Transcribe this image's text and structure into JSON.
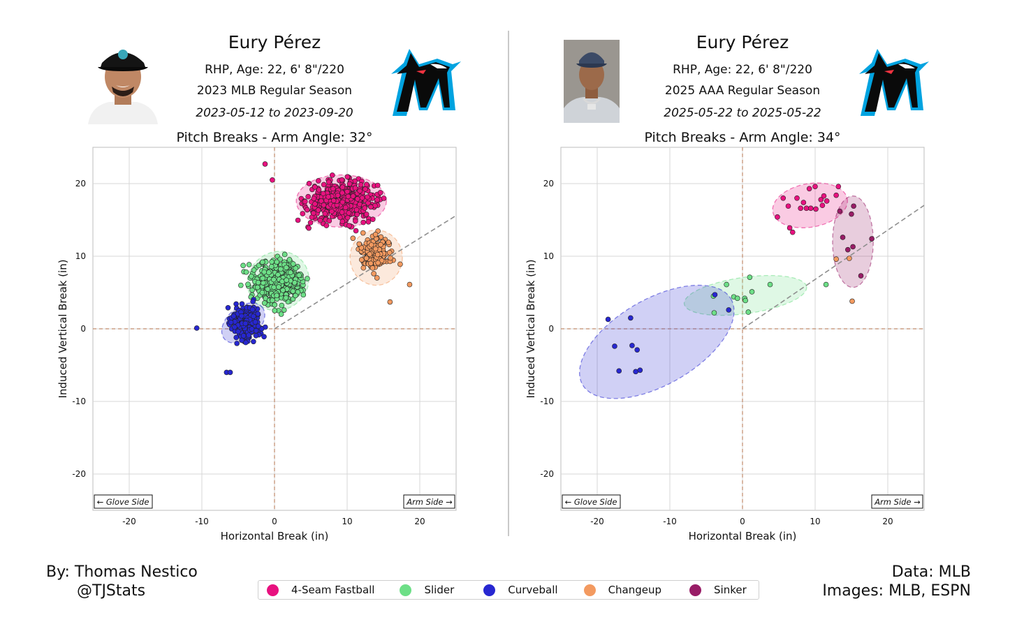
{
  "pitch_types": [
    {
      "key": "FF",
      "name": "4-Seam Fastball",
      "color": "#e8117f"
    },
    {
      "key": "SL",
      "name": "Slider",
      "color": "#6ddf87"
    },
    {
      "key": "CU",
      "name": "Curveball",
      "color": "#2727d1"
    },
    {
      "key": "CH",
      "name": "Changeup",
      "color": "#f39a60"
    },
    {
      "key": "SI",
      "name": "Sinker",
      "color": "#981c66"
    }
  ],
  "panels": [
    {
      "player_name": "Eury Pérez",
      "bio": "RHP, Age: 22, 6' 8\"/220",
      "season": "2023 MLB Regular Season",
      "date_range": "2023-05-12 to 2023-09-20",
      "plot_title": "Pitch Breaks - Arm Angle: 32°",
      "logo": "marlins-m-logo",
      "photo": "player-headshot-cap"
    },
    {
      "player_name": "Eury Pérez",
      "bio": "RHP, Age: 22, 6' 8\"/220",
      "season": "2025 AAA Regular Season",
      "date_range": "2025-05-22 to 2025-05-22",
      "plot_title": "Pitch Breaks - Arm Angle: 34°",
      "logo": "marlins-m-logo",
      "photo": "player-headshot-chain"
    }
  ],
  "footer": {
    "author": "By: Thomas Nestico",
    "handle": "@TJStats",
    "data_source": "Data: MLB",
    "image_source": "Images: MLB, ESPN"
  },
  "chart_data": [
    {
      "type": "scatter",
      "title": "Pitch Breaks - Arm Angle: 32°",
      "xlabel": "Horizontal Break (in)",
      "ylabel": "Induced Vertical Break (in)",
      "xlim": [
        -25,
        25
      ],
      "ylim": [
        -25,
        25
      ],
      "xticks": [
        -20,
        -10,
        0,
        10,
        20
      ],
      "yticks": [
        -20,
        -10,
        0,
        10,
        20
      ],
      "grid": true,
      "annotations": {
        "glove_side": "← Glove Side",
        "arm_side": "Arm Side →"
      },
      "arm_angle_line": {
        "from": [
          0,
          0
        ],
        "to": [
          25,
          15.6
        ]
      },
      "series": [
        {
          "name": "4-Seam Fastball",
          "key": "FF",
          "center": [
            9.2,
            17.6
          ],
          "spread": [
            3.7,
            2.1
          ],
          "count": 520,
          "ellipse": {
            "center": [
              9.2,
              17.6
            ],
            "rx": 6.2,
            "ry": 3.6,
            "angle": 0
          }
        },
        {
          "name": "Slider",
          "key": "SL",
          "center": [
            0.5,
            6.6
          ],
          "spread": [
            2.6,
            2.2
          ],
          "count": 500,
          "ellipse": {
            "center": [
              0.5,
              6.6
            ],
            "rx": 4.3,
            "ry": 4.0,
            "angle": 30
          }
        },
        {
          "name": "Curveball",
          "key": "CU",
          "center": [
            -4.0,
            0.8
          ],
          "spread": [
            1.7,
            2.0
          ],
          "count": 210,
          "ellipse": {
            "center": [
              -4.3,
              0.8
            ],
            "rx": 3.4,
            "ry": 2.2,
            "angle": 40
          }
        },
        {
          "name": "Changeup",
          "key": "CH",
          "center": [
            13.8,
            10.6
          ],
          "spread": [
            1.8,
            1.8
          ],
          "count": 150,
          "ellipse": {
            "center": [
              14.0,
              9.8
            ],
            "rx": 3.6,
            "ry": 3.8,
            "angle": 0
          }
        },
        {
          "name": "Sinker",
          "key": "SI",
          "count": 0
        }
      ],
      "outliers": [
        {
          "key": "FF",
          "x": -1.3,
          "y": 22.7
        },
        {
          "key": "FF",
          "x": -0.3,
          "y": 20.5
        },
        {
          "key": "FF",
          "x": 4.5,
          "y": 16.4
        },
        {
          "key": "CU",
          "x": -10.7,
          "y": 0.1
        },
        {
          "key": "CU",
          "x": -6.6,
          "y": -6.0
        },
        {
          "key": "CU",
          "x": -6.1,
          "y": -6.0
        },
        {
          "key": "CH",
          "x": 15.9,
          "y": 3.7
        },
        {
          "key": "CH",
          "x": 18.6,
          "y": 6.1
        },
        {
          "key": "CH",
          "x": 17.3,
          "y": 8.9
        }
      ]
    },
    {
      "type": "scatter",
      "title": "Pitch Breaks - Arm Angle: 34°",
      "xlabel": "Horizontal Break (in)",
      "ylabel": "Induced Vertical Break (in)",
      "xlim": [
        -25,
        25
      ],
      "ylim": [
        -25,
        25
      ],
      "xticks": [
        -20,
        -10,
        0,
        10,
        20
      ],
      "yticks": [
        -20,
        -10,
        0,
        10,
        20
      ],
      "grid": true,
      "annotations": {
        "glove_side": "← Glove Side",
        "arm_side": "Arm Side →"
      },
      "arm_angle_line": {
        "from": [
          0,
          0
        ],
        "to": [
          25,
          17.0
        ]
      },
      "ellipses": [
        {
          "key": "FF",
          "center": [
            9.3,
            17.0
          ],
          "rx": 5.2,
          "ry": 3.0,
          "angle": 10
        },
        {
          "key": "SL",
          "center": [
            0.4,
            4.6
          ],
          "rx": 8.5,
          "ry": 2.5,
          "angle": 8
        },
        {
          "key": "CU",
          "center": [
            -11.8,
            -1.8
          ],
          "rx": 11.8,
          "ry": 5.9,
          "angle": 30
        },
        {
          "key": "SI",
          "center": [
            15.2,
            12.0
          ],
          "rx": 2.8,
          "ry": 6.3,
          "angle": 0
        }
      ],
      "points": [
        {
          "key": "FF",
          "x": 4.8,
          "y": 15.4
        },
        {
          "key": "FF",
          "x": 5.6,
          "y": 18.0
        },
        {
          "key": "FF",
          "x": 6.3,
          "y": 16.9
        },
        {
          "key": "FF",
          "x": 6.5,
          "y": 13.9
        },
        {
          "key": "FF",
          "x": 6.9,
          "y": 13.3
        },
        {
          "key": "FF",
          "x": 7.5,
          "y": 18.0
        },
        {
          "key": "FF",
          "x": 8.0,
          "y": 16.6
        },
        {
          "key": "FF",
          "x": 8.4,
          "y": 17.4
        },
        {
          "key": "FF",
          "x": 8.8,
          "y": 16.6
        },
        {
          "key": "FF",
          "x": 9.2,
          "y": 19.3
        },
        {
          "key": "FF",
          "x": 9.4,
          "y": 16.6
        },
        {
          "key": "FF",
          "x": 10.1,
          "y": 16.5
        },
        {
          "key": "FF",
          "x": 10.0,
          "y": 19.6
        },
        {
          "key": "FF",
          "x": 10.8,
          "y": 17.8
        },
        {
          "key": "FF",
          "x": 11.2,
          "y": 18.3
        },
        {
          "key": "FF",
          "x": 11.6,
          "y": 17.6
        },
        {
          "key": "FF",
          "x": 11.0,
          "y": 17.0
        },
        {
          "key": "FF",
          "x": 12.9,
          "y": 18.4
        },
        {
          "key": "FF",
          "x": 13.2,
          "y": 19.6
        },
        {
          "key": "SL",
          "x": -4.0,
          "y": 4.5
        },
        {
          "key": "SL",
          "x": -3.9,
          "y": 2.2
        },
        {
          "key": "SL",
          "x": -2.2,
          "y": 6.1
        },
        {
          "key": "SL",
          "x": -1.2,
          "y": 4.4
        },
        {
          "key": "SL",
          "x": -0.7,
          "y": 4.2
        },
        {
          "key": "SL",
          "x": 0.3,
          "y": 4.2
        },
        {
          "key": "SL",
          "x": 0.4,
          "y": 3.9
        },
        {
          "key": "SL",
          "x": 0.8,
          "y": 2.3
        },
        {
          "key": "SL",
          "x": 1.0,
          "y": 7.1
        },
        {
          "key": "SL",
          "x": 1.3,
          "y": 5.1
        },
        {
          "key": "SL",
          "x": 3.8,
          "y": 6.1
        },
        {
          "key": "SL",
          "x": 11.5,
          "y": 6.1
        },
        {
          "key": "CU",
          "x": -18.5,
          "y": 1.3
        },
        {
          "key": "CU",
          "x": -15.4,
          "y": 1.5
        },
        {
          "key": "CU",
          "x": -17.6,
          "y": -2.4
        },
        {
          "key": "CU",
          "x": -15.2,
          "y": -2.3
        },
        {
          "key": "CU",
          "x": -14.5,
          "y": -2.9
        },
        {
          "key": "CU",
          "x": -17.0,
          "y": -5.8
        },
        {
          "key": "CU",
          "x": -14.7,
          "y": -5.9
        },
        {
          "key": "CU",
          "x": -14.1,
          "y": -5.7
        },
        {
          "key": "CU",
          "x": -3.8,
          "y": 4.7
        },
        {
          "key": "CU",
          "x": -1.9,
          "y": 2.6
        },
        {
          "key": "CH",
          "x": 12.9,
          "y": 9.6
        },
        {
          "key": "CH",
          "x": 14.7,
          "y": 9.7
        },
        {
          "key": "CH",
          "x": 15.1,
          "y": 3.8
        },
        {
          "key": "SI",
          "x": 13.4,
          "y": 16.2
        },
        {
          "key": "SI",
          "x": 13.8,
          "y": 12.6
        },
        {
          "key": "SI",
          "x": 14.5,
          "y": 10.9
        },
        {
          "key": "SI",
          "x": 15.2,
          "y": 11.3
        },
        {
          "key": "SI",
          "x": 15.3,
          "y": 16.9
        },
        {
          "key": "SI",
          "x": 15.0,
          "y": 15.8
        },
        {
          "key": "SI",
          "x": 16.3,
          "y": 7.3
        },
        {
          "key": "SI",
          "x": 17.8,
          "y": 12.4
        }
      ]
    }
  ]
}
